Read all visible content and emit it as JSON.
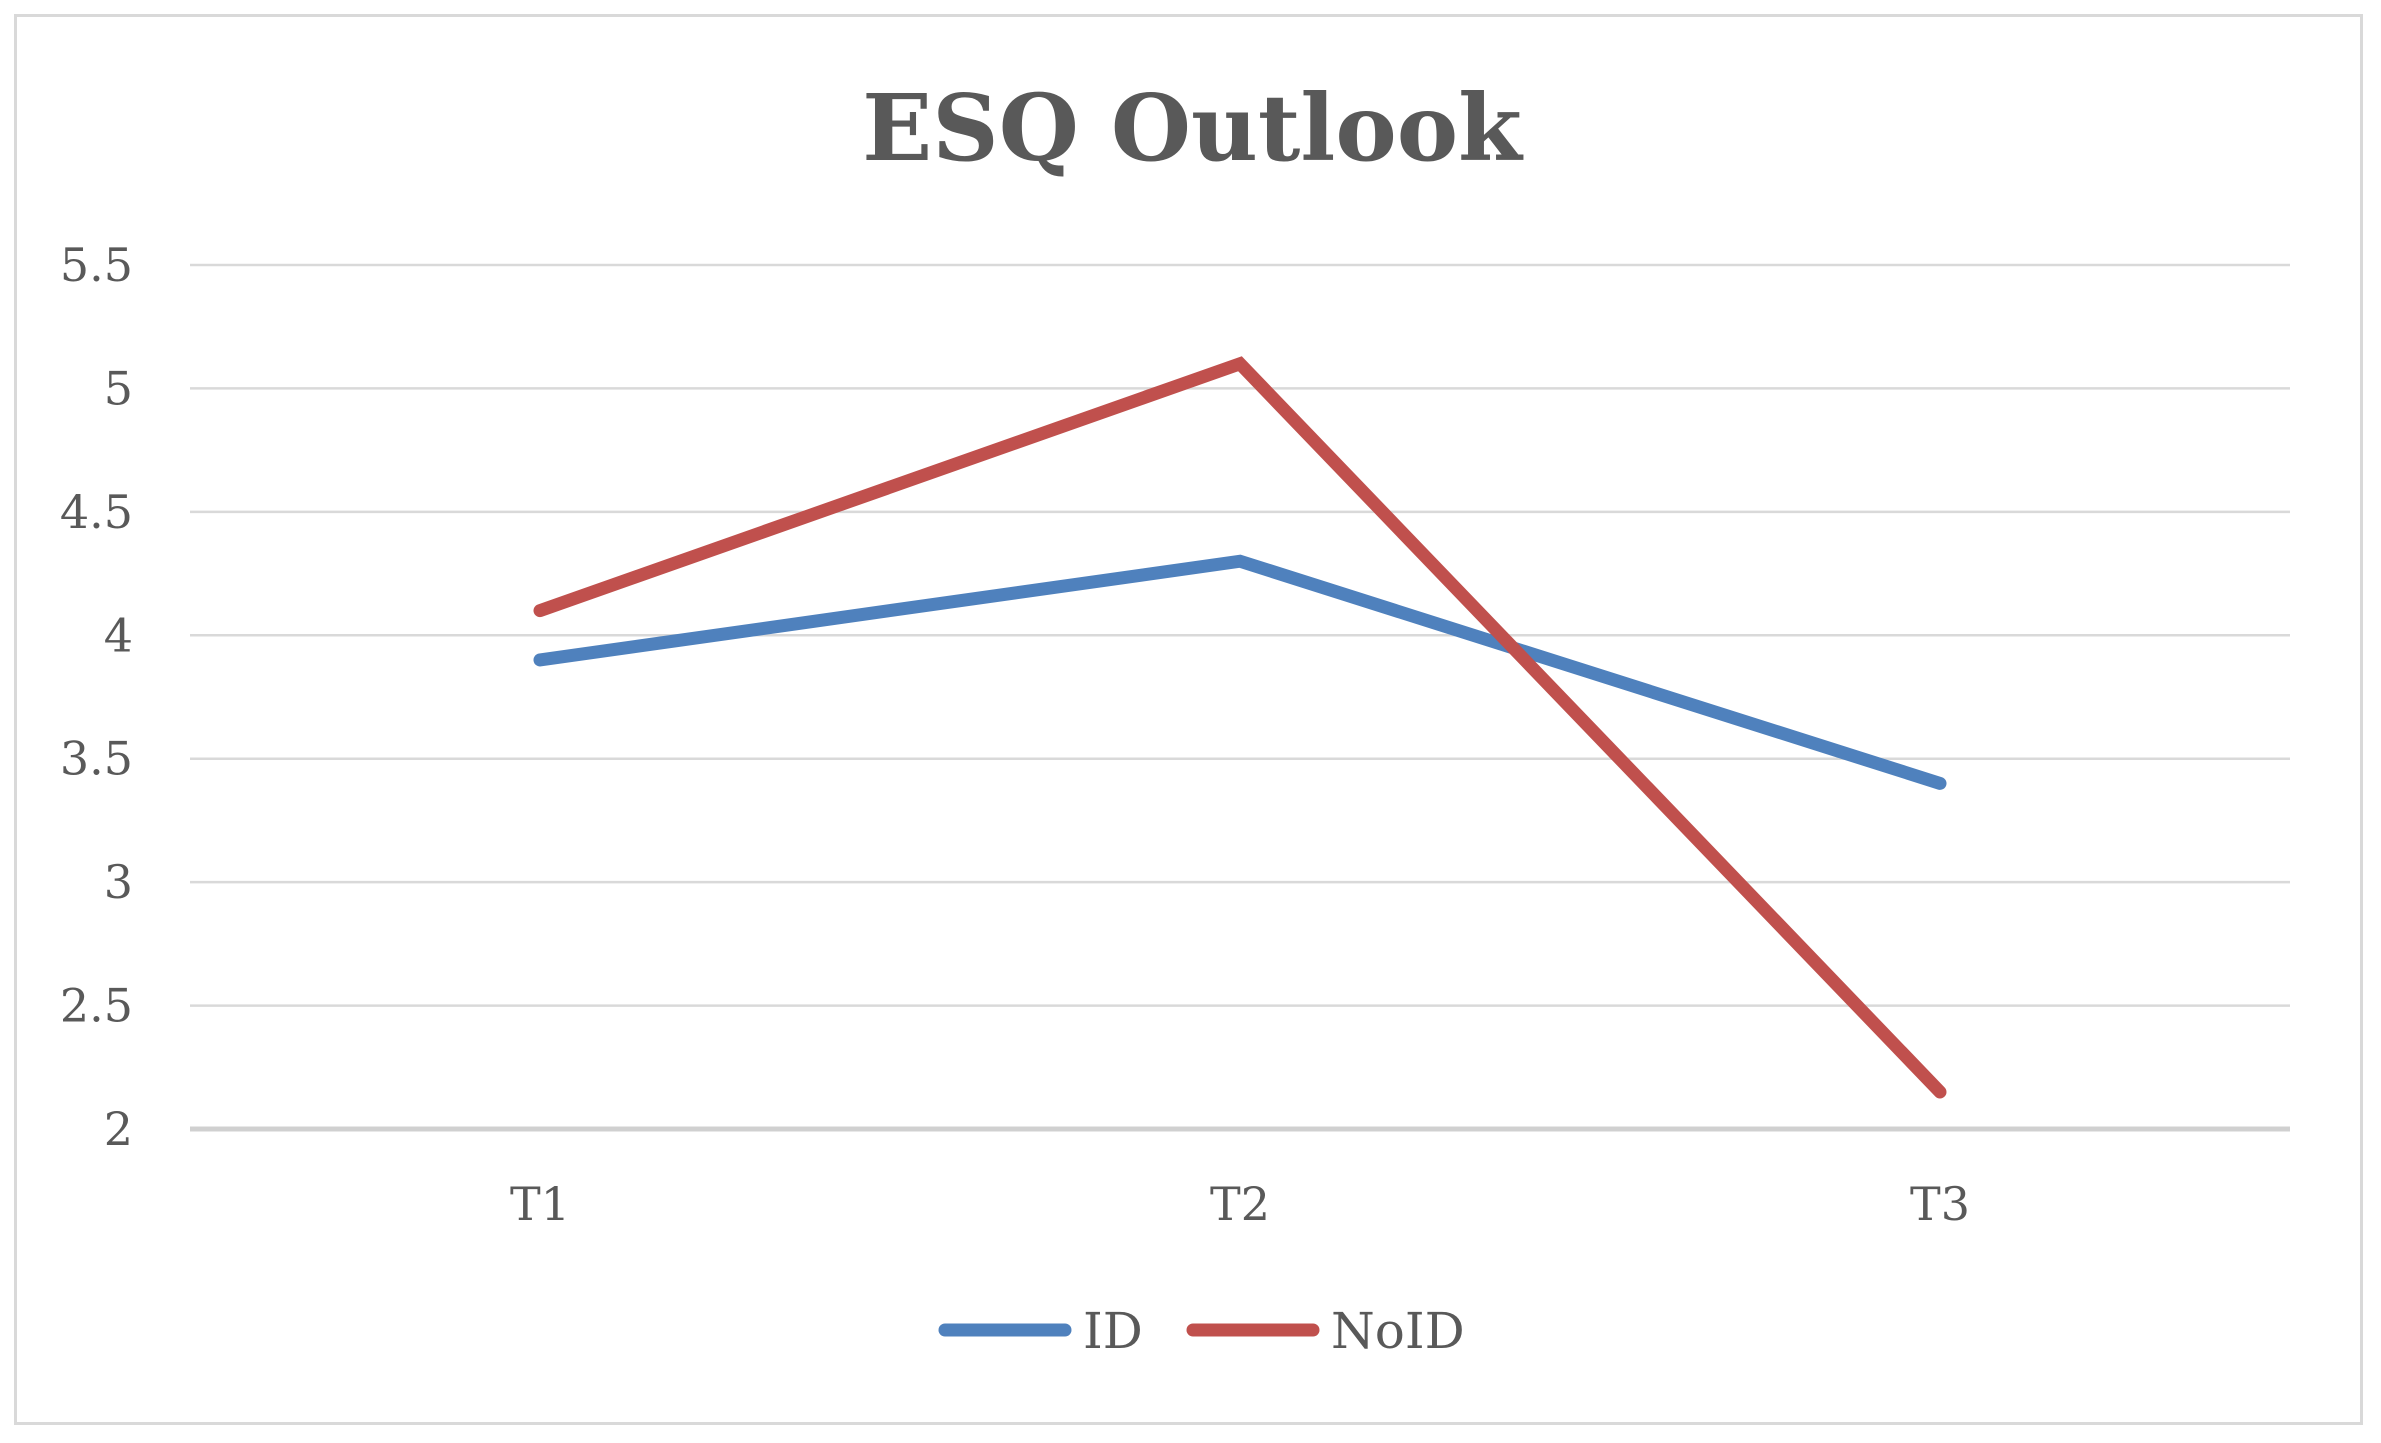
{
  "chart_data": {
    "type": "line",
    "title": "ESQ Outlook",
    "xlabel": "",
    "ylabel": "",
    "categories": [
      "T1",
      "T2",
      "T3"
    ],
    "ylim": [
      2,
      5.5
    ],
    "yticks": [
      "5.5",
      "5",
      "4.5",
      "4",
      "3.5",
      "3",
      "2.5",
      "2"
    ],
    "grid": true,
    "legend_position": "bottom",
    "series": [
      {
        "name": "ID",
        "color": "#4f81bd",
        "values": [
          3.9,
          4.3,
          3.4
        ]
      },
      {
        "name": "NoID",
        "color": "#c0504d",
        "values": [
          4.1,
          5.1,
          2.15
        ]
      }
    ]
  }
}
